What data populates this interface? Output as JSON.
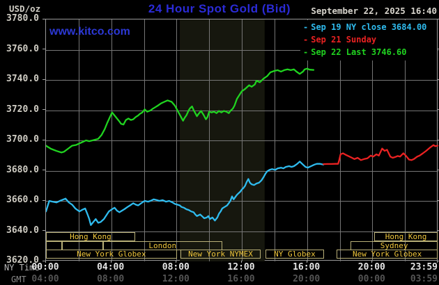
{
  "header": {
    "unit_label": "USD/oz",
    "title": "24 Hour Spot Gold (Bid)",
    "datetime": "September 22, 2025 16:40"
  },
  "watermark": "www.kitco.com",
  "legend": {
    "items": [
      {
        "label": "Sep 19 NY close 3684.00",
        "color": "#2fbbee"
      },
      {
        "label": "Sep 21 Sunday",
        "color": "#ea2222"
      },
      {
        "label": "Sep 22 Last 3746.60",
        "color": "#20d320"
      }
    ]
  },
  "axes": {
    "y_ticks": [
      "3780.0",
      "3760.0",
      "3740.0",
      "3720.0",
      "3700.0",
      "3680.0",
      "3660.0",
      "3640.0",
      "3620.0"
    ],
    "x_row1_label": "NY Time",
    "x_row2_label": "GMT",
    "x_row1_ticks": [
      "00:00",
      "04:00",
      "08:00",
      "12:00",
      "16:00",
      "20:00",
      "23:59"
    ],
    "x_row2_ticks": [
      "04:00",
      "08:00",
      "12:00",
      "16:00",
      "20:00",
      "00:00",
      "03:59"
    ]
  },
  "sessions": [
    {
      "row": 1,
      "start": 0,
      "end": 5.46,
      "label": "Hong Kong"
    },
    {
      "row": 1,
      "start": 20.12,
      "end": 24,
      "label": "Hong Kong"
    },
    {
      "row": 2,
      "start": 0,
      "end": 0.98,
      "label": ""
    },
    {
      "row": 2,
      "start": 0.98,
      "end": 3.5,
      "label": ""
    },
    {
      "row": 2,
      "start": 3.5,
      "end": 10.78,
      "label": "London"
    },
    {
      "row": 2,
      "start": 18.67,
      "end": 24,
      "label": "Sydney"
    },
    {
      "row": 3,
      "start": 0,
      "end": 8.01,
      "label": "New York Globex"
    },
    {
      "row": 3,
      "start": 8.23,
      "end": 13.17,
      "label": "New York NYMEX"
    },
    {
      "row": 3,
      "start": 13.43,
      "end": 17.05,
      "label": "NY Globex"
    },
    {
      "row": 3,
      "start": 17.82,
      "end": 24,
      "label": "New York Globex"
    }
  ],
  "colors": {
    "background": "#000000",
    "grid": "#767676",
    "plot_border": "#9a9a9a",
    "session_band": "#16170e",
    "session_box_border": "#b9b078",
    "session_box_text": "#efc63c",
    "title_blue": "#2b2bd6",
    "cyan_series": "#2fbbee",
    "red_series": "#ea2222",
    "green_series": "#20d320"
  },
  "chart_data": {
    "type": "line",
    "title": "24 Hour Spot Gold (Bid)",
    "ylabel": "USD/oz",
    "ylim": [
      3620,
      3780
    ],
    "y_gridline_step": 20,
    "xlim_hours_ny": [
      0,
      24
    ],
    "x_gridline_step_hours": 2,
    "highlight_band_hours": [
      8.2,
      13.4
    ],
    "legend_position": "top-right",
    "series": [
      {
        "name": "Sep 19 NY close 3684.00",
        "color": "#2fbbee",
        "points": [
          [
            0,
            3653
          ],
          [
            0.2,
            3660
          ],
          [
            0.4,
            3659.5
          ],
          [
            0.65,
            3659
          ],
          [
            0.85,
            3660
          ],
          [
            1.2,
            3661.5
          ],
          [
            1.4,
            3659
          ],
          [
            1.6,
            3657.5
          ],
          [
            1.8,
            3655
          ],
          [
            2.05,
            3653
          ],
          [
            2.2,
            3654
          ],
          [
            2.4,
            3655
          ],
          [
            2.55,
            3651
          ],
          [
            2.65,
            3648
          ],
          [
            2.75,
            3644
          ],
          [
            2.9,
            3646
          ],
          [
            3.05,
            3648
          ],
          [
            3.2,
            3645.5
          ],
          [
            3.35,
            3646
          ],
          [
            3.55,
            3648
          ],
          [
            3.7,
            3650.5
          ],
          [
            3.85,
            3653
          ],
          [
            4.05,
            3654.5
          ],
          [
            4.2,
            3655.5
          ],
          [
            4.35,
            3653.5
          ],
          [
            4.5,
            3652.5
          ],
          [
            4.65,
            3653.5
          ],
          [
            4.8,
            3654.5
          ],
          [
            5,
            3656
          ],
          [
            5.15,
            3657
          ],
          [
            5.35,
            3658.5
          ],
          [
            5.5,
            3657.5
          ],
          [
            5.65,
            3657
          ],
          [
            5.9,
            3659
          ],
          [
            6.05,
            3660
          ],
          [
            6.25,
            3659.5
          ],
          [
            6.4,
            3660
          ],
          [
            6.6,
            3661
          ],
          [
            6.8,
            3660.5
          ],
          [
            6.95,
            3660
          ],
          [
            7.15,
            3660.5
          ],
          [
            7.35,
            3659.5
          ],
          [
            7.55,
            3660
          ],
          [
            7.75,
            3659
          ],
          [
            7.9,
            3658
          ],
          [
            8.05,
            3657.5
          ],
          [
            8.2,
            3657
          ],
          [
            8.3,
            3656
          ],
          [
            8.45,
            3655.5
          ],
          [
            8.6,
            3654.5
          ],
          [
            8.75,
            3654
          ],
          [
            8.9,
            3653
          ],
          [
            9.05,
            3652.5
          ],
          [
            9.15,
            3651
          ],
          [
            9.25,
            3650
          ],
          [
            9.35,
            3650.5
          ],
          [
            9.45,
            3651
          ],
          [
            9.6,
            3649.5
          ],
          [
            9.7,
            3648.5
          ],
          [
            9.85,
            3649
          ],
          [
            9.95,
            3650
          ],
          [
            10.05,
            3648
          ],
          [
            10.2,
            3649
          ],
          [
            10.35,
            3647
          ],
          [
            10.5,
            3649
          ],
          [
            10.6,
            3651.5
          ],
          [
            10.7,
            3653
          ],
          [
            10.8,
            3655
          ],
          [
            10.95,
            3656
          ],
          [
            11.1,
            3657
          ],
          [
            11.2,
            3658.5
          ],
          [
            11.3,
            3660
          ],
          [
            11.4,
            3663
          ],
          [
            11.5,
            3661
          ],
          [
            11.6,
            3662.5
          ],
          [
            11.7,
            3664
          ],
          [
            11.8,
            3665
          ],
          [
            11.9,
            3666
          ],
          [
            12,
            3667.5
          ],
          [
            12.1,
            3668.5
          ],
          [
            12.2,
            3670
          ],
          [
            12.3,
            3672.5
          ],
          [
            12.4,
            3674.5
          ],
          [
            12.5,
            3672
          ],
          [
            12.6,
            3671
          ],
          [
            12.75,
            3670.5
          ],
          [
            12.9,
            3671.5
          ],
          [
            13.05,
            3672
          ],
          [
            13.2,
            3673.5
          ],
          [
            13.35,
            3676
          ],
          [
            13.45,
            3678
          ],
          [
            13.55,
            3679.5
          ],
          [
            13.7,
            3680.5
          ],
          [
            13.85,
            3681
          ],
          [
            14.05,
            3680.5
          ],
          [
            14.2,
            3681.5
          ],
          [
            14.4,
            3682
          ],
          [
            14.55,
            3681.5
          ],
          [
            14.7,
            3682.5
          ],
          [
            14.9,
            3683
          ],
          [
            15.05,
            3682.5
          ],
          [
            15.2,
            3683
          ],
          [
            15.4,
            3684.5
          ],
          [
            15.55,
            3686
          ],
          [
            15.75,
            3684
          ],
          [
            15.9,
            3682.5
          ],
          [
            16.05,
            3682
          ],
          [
            16.25,
            3683
          ],
          [
            16.45,
            3684
          ],
          [
            16.6,
            3684.5
          ],
          [
            16.8,
            3684.5
          ],
          [
            17,
            3684
          ]
        ]
      },
      {
        "name": "Sep 21 Sunday",
        "color": "#ea2222",
        "points": [
          [
            17,
            3684.3
          ],
          [
            17.25,
            3684.4
          ],
          [
            17.5,
            3684.4
          ],
          [
            17.75,
            3684.5
          ],
          [
            17.9,
            3684.5
          ],
          [
            17.97,
            3687
          ],
          [
            18.05,
            3690.8
          ],
          [
            18.2,
            3691.5
          ],
          [
            18.4,
            3690.3
          ],
          [
            18.6,
            3689.3
          ],
          [
            18.75,
            3688.5
          ],
          [
            18.9,
            3687.7
          ],
          [
            19.1,
            3688.5
          ],
          [
            19.3,
            3687
          ],
          [
            19.5,
            3687.7
          ],
          [
            19.7,
            3688.2
          ],
          [
            19.9,
            3690
          ],
          [
            20.05,
            3689.3
          ],
          [
            20.25,
            3690.8
          ],
          [
            20.4,
            3690
          ],
          [
            20.6,
            3694.6
          ],
          [
            20.75,
            3693.1
          ],
          [
            20.9,
            3693.8
          ],
          [
            21.1,
            3689.3
          ],
          [
            21.25,
            3688.5
          ],
          [
            21.4,
            3689
          ],
          [
            21.55,
            3689.7
          ],
          [
            21.7,
            3689.3
          ],
          [
            21.9,
            3691.5
          ],
          [
            22.05,
            3690
          ],
          [
            22.25,
            3687.3
          ],
          [
            22.4,
            3687
          ],
          [
            22.55,
            3687.7
          ],
          [
            22.75,
            3689.3
          ],
          [
            22.9,
            3690
          ],
          [
            23.1,
            3691.5
          ],
          [
            23.3,
            3693.1
          ],
          [
            23.55,
            3695.4
          ],
          [
            23.75,
            3696.9
          ],
          [
            23.85,
            3696.2
          ],
          [
            24,
            3696.5
          ]
        ]
      },
      {
        "name": "Sep 22 Last 3746.60",
        "color": "#20d320",
        "points": [
          [
            0,
            3696.5
          ],
          [
            0.3,
            3694.5
          ],
          [
            0.65,
            3693
          ],
          [
            0.95,
            3692
          ],
          [
            1.1,
            3692.5
          ],
          [
            1.35,
            3694.5
          ],
          [
            1.6,
            3696.5
          ],
          [
            1.85,
            3697
          ],
          [
            2.05,
            3698
          ],
          [
            2.25,
            3699
          ],
          [
            2.45,
            3700
          ],
          [
            2.65,
            3699.5
          ],
          [
            2.85,
            3700
          ],
          [
            3.2,
            3701
          ],
          [
            3.4,
            3703.5
          ],
          [
            3.6,
            3707.5
          ],
          [
            3.75,
            3711.5
          ],
          [
            3.9,
            3715
          ],
          [
            4.05,
            3718.5
          ],
          [
            4.2,
            3716.5
          ],
          [
            4.35,
            3714.5
          ],
          [
            4.5,
            3712.5
          ],
          [
            4.6,
            3711
          ],
          [
            4.75,
            3710.5
          ],
          [
            4.9,
            3713.5
          ],
          [
            5.05,
            3714.5
          ],
          [
            5.2,
            3713.5
          ],
          [
            5.35,
            3714
          ],
          [
            5.5,
            3715.5
          ],
          [
            5.65,
            3716.5
          ],
          [
            5.75,
            3717.5
          ],
          [
            5.9,
            3718.5
          ],
          [
            6.05,
            3720.5
          ],
          [
            6.2,
            3719
          ],
          [
            6.4,
            3719.8
          ],
          [
            6.55,
            3721
          ],
          [
            6.7,
            3722
          ],
          [
            6.85,
            3723
          ],
          [
            7.05,
            3724.5
          ],
          [
            7.25,
            3725.5
          ],
          [
            7.45,
            3726.5
          ],
          [
            7.7,
            3725.5
          ],
          [
            7.9,
            3723
          ],
          [
            8,
            3721
          ],
          [
            8.2,
            3717
          ],
          [
            8.3,
            3715
          ],
          [
            8.4,
            3713
          ],
          [
            8.5,
            3715
          ],
          [
            8.6,
            3716.5
          ],
          [
            8.75,
            3720
          ],
          [
            8.85,
            3721.5
          ],
          [
            8.95,
            3722.5
          ],
          [
            9.05,
            3720
          ],
          [
            9.15,
            3718
          ],
          [
            9.25,
            3716
          ],
          [
            9.35,
            3717.5
          ],
          [
            9.5,
            3719.5
          ],
          [
            9.65,
            3717
          ],
          [
            9.8,
            3714
          ],
          [
            9.9,
            3715.5
          ],
          [
            10,
            3719
          ],
          [
            10.15,
            3718.5
          ],
          [
            10.3,
            3719
          ],
          [
            10.45,
            3718
          ],
          [
            10.6,
            3719.5
          ],
          [
            10.75,
            3718.5
          ],
          [
            10.9,
            3719.5
          ],
          [
            11.05,
            3719
          ],
          [
            11.2,
            3718
          ],
          [
            11.3,
            3719.5
          ],
          [
            11.45,
            3721
          ],
          [
            11.55,
            3723
          ],
          [
            11.7,
            3727.5
          ],
          [
            11.85,
            3730
          ],
          [
            12,
            3732.5
          ],
          [
            12.2,
            3734
          ],
          [
            12.45,
            3736.5
          ],
          [
            12.6,
            3735.5
          ],
          [
            12.8,
            3737
          ],
          [
            12.9,
            3739.5
          ],
          [
            13.1,
            3738.5
          ],
          [
            13.35,
            3741
          ],
          [
            13.55,
            3742.5
          ],
          [
            13.75,
            3745
          ],
          [
            14,
            3746
          ],
          [
            14.2,
            3746.5
          ],
          [
            14.4,
            3745.5
          ],
          [
            14.6,
            3746.5
          ],
          [
            14.8,
            3747
          ],
          [
            15,
            3746.5
          ],
          [
            15.2,
            3747
          ],
          [
            15.35,
            3745.5
          ],
          [
            15.55,
            3744
          ],
          [
            15.75,
            3745.5
          ],
          [
            15.85,
            3747
          ],
          [
            16,
            3747.5
          ],
          [
            16.15,
            3746.8
          ],
          [
            16.4,
            3746.6
          ]
        ]
      }
    ]
  }
}
